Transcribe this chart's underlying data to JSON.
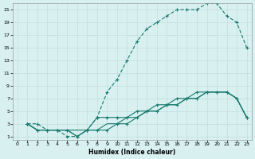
{
  "xlabel": "Humidex (Indice chaleur)",
  "bg_color": "#d8f0f0",
  "grid_color": "#c0dede",
  "line_color": "#1a7a6e",
  "xlim": [
    -0.5,
    23.5
  ],
  "ylim": [
    0.5,
    22
  ],
  "xticks": [
    0,
    1,
    2,
    3,
    4,
    5,
    6,
    7,
    8,
    9,
    10,
    11,
    12,
    13,
    14,
    15,
    16,
    17,
    18,
    19,
    20,
    21,
    22,
    23
  ],
  "yticks": [
    1,
    3,
    5,
    7,
    9,
    11,
    13,
    15,
    17,
    19,
    21
  ],
  "line1_x": [
    1,
    2,
    3,
    4,
    5,
    6,
    7,
    8,
    9,
    10,
    11,
    12,
    13,
    14,
    15,
    16,
    17,
    18,
    19,
    20,
    21,
    22,
    23
  ],
  "line1_y": [
    3,
    3,
    2,
    2,
    1,
    1,
    2,
    4,
    8,
    10,
    13,
    16,
    18,
    19,
    20,
    21,
    21,
    21,
    22,
    22,
    20,
    19,
    15
  ],
  "line2_x": [
    1,
    2,
    3,
    4,
    5,
    6,
    7,
    8,
    9,
    10,
    11,
    12,
    13,
    14,
    15,
    16,
    17,
    18,
    19,
    20,
    21,
    22,
    23
  ],
  "line2_y": [
    3,
    2,
    2,
    2,
    2,
    1,
    2,
    2,
    2,
    3,
    3,
    4,
    5,
    5,
    6,
    6,
    7,
    7,
    8,
    8,
    8,
    7,
    4
  ],
  "line3_x": [
    1,
    2,
    3,
    4,
    5,
    6,
    7,
    8,
    9,
    10,
    11,
    12,
    13,
    14,
    15,
    16,
    17,
    18,
    19,
    20,
    21,
    22,
    23
  ],
  "line3_y": [
    3,
    2,
    2,
    2,
    2,
    1,
    2,
    4,
    4,
    4,
    4,
    5,
    5,
    6,
    6,
    7,
    7,
    8,
    8,
    8,
    8,
    7,
    4
  ],
  "line4_x": [
    1,
    2,
    3,
    4,
    5,
    6,
    7,
    8,
    9,
    10,
    11,
    12,
    13,
    14,
    15,
    16,
    17,
    18,
    19,
    20,
    21,
    22,
    23
  ],
  "line4_y": [
    3,
    2,
    2,
    2,
    2,
    2,
    2,
    2,
    3,
    3,
    4,
    4,
    5,
    5,
    6,
    6,
    7,
    7,
    8,
    8,
    8,
    7,
    4
  ]
}
